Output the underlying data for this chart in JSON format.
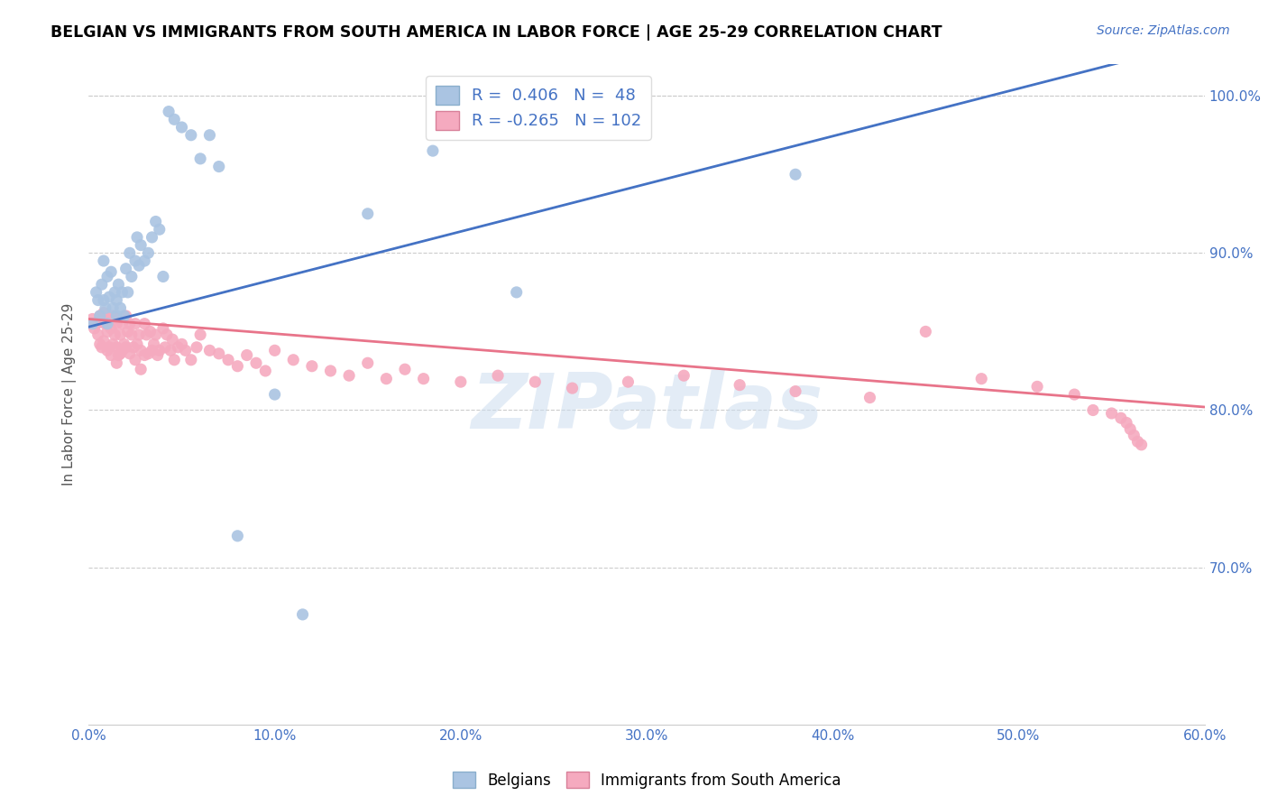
{
  "title": "BELGIAN VS IMMIGRANTS FROM SOUTH AMERICA IN LABOR FORCE | AGE 25-29 CORRELATION CHART",
  "source": "Source: ZipAtlas.com",
  "ylabel": "In Labor Force | Age 25-29",
  "xlim": [
    0.0,
    0.6
  ],
  "ylim": [
    0.6,
    1.02
  ],
  "yticks": [
    0.7,
    0.8,
    0.9,
    1.0
  ],
  "xticks": [
    0.0,
    0.1,
    0.2,
    0.3,
    0.4,
    0.5,
    0.6
  ],
  "xtick_labels": [
    "0.0%",
    "10.0%",
    "20.0%",
    "30.0%",
    "40.0%",
    "50.0%",
    "60.0%"
  ],
  "ytick_labels": [
    "70.0%",
    "80.0%",
    "90.0%",
    "100.0%"
  ],
  "r_belgian": 0.406,
  "n_belgian": 48,
  "r_immigrant": -0.265,
  "n_immigrant": 102,
  "belgian_color": "#aac4e2",
  "immigrant_color": "#f5aabf",
  "belgian_line_color": "#4472c4",
  "immigrant_line_color": "#e8748a",
  "legend_belgian": "Belgians",
  "legend_immigrant": "Immigrants from South America",
  "watermark": "ZIPatlas",
  "belgian_trend": [
    0.853,
    1.035
  ],
  "immigrant_trend": [
    0.858,
    0.802
  ],
  "belgian_x": [
    0.002,
    0.004,
    0.005,
    0.006,
    0.007,
    0.008,
    0.008,
    0.009,
    0.01,
    0.01,
    0.011,
    0.012,
    0.013,
    0.014,
    0.015,
    0.015,
    0.016,
    0.017,
    0.018,
    0.019,
    0.02,
    0.021,
    0.022,
    0.023,
    0.025,
    0.026,
    0.027,
    0.028,
    0.03,
    0.032,
    0.034,
    0.036,
    0.038,
    0.04,
    0.043,
    0.046,
    0.05,
    0.055,
    0.06,
    0.065,
    0.07,
    0.08,
    0.1,
    0.115,
    0.15,
    0.185,
    0.23,
    0.38
  ],
  "belgian_y": [
    0.855,
    0.875,
    0.87,
    0.86,
    0.88,
    0.895,
    0.87,
    0.865,
    0.885,
    0.855,
    0.872,
    0.888,
    0.865,
    0.875,
    0.86,
    0.87,
    0.88,
    0.865,
    0.875,
    0.86,
    0.89,
    0.875,
    0.9,
    0.885,
    0.895,
    0.91,
    0.892,
    0.905,
    0.895,
    0.9,
    0.91,
    0.92,
    0.915,
    0.885,
    0.99,
    0.985,
    0.98,
    0.975,
    0.96,
    0.975,
    0.955,
    0.72,
    0.81,
    0.67,
    0.925,
    0.965,
    0.875,
    0.95
  ],
  "immigrant_x": [
    0.002,
    0.003,
    0.004,
    0.005,
    0.006,
    0.006,
    0.007,
    0.007,
    0.008,
    0.008,
    0.009,
    0.01,
    0.01,
    0.011,
    0.011,
    0.012,
    0.012,
    0.013,
    0.013,
    0.014,
    0.015,
    0.015,
    0.015,
    0.016,
    0.016,
    0.017,
    0.017,
    0.018,
    0.018,
    0.019,
    0.02,
    0.02,
    0.021,
    0.022,
    0.022,
    0.023,
    0.024,
    0.025,
    0.025,
    0.026,
    0.027,
    0.028,
    0.028,
    0.03,
    0.03,
    0.031,
    0.032,
    0.033,
    0.034,
    0.035,
    0.036,
    0.037,
    0.038,
    0.04,
    0.041,
    0.042,
    0.044,
    0.045,
    0.046,
    0.048,
    0.05,
    0.052,
    0.055,
    0.058,
    0.06,
    0.065,
    0.07,
    0.075,
    0.08,
    0.085,
    0.09,
    0.095,
    0.1,
    0.11,
    0.12,
    0.13,
    0.14,
    0.15,
    0.16,
    0.17,
    0.18,
    0.2,
    0.22,
    0.24,
    0.26,
    0.29,
    0.32,
    0.35,
    0.38,
    0.42,
    0.45,
    0.48,
    0.51,
    0.53,
    0.54,
    0.55,
    0.555,
    0.558,
    0.56,
    0.562,
    0.564,
    0.566
  ],
  "immigrant_y": [
    0.858,
    0.852,
    0.855,
    0.848,
    0.86,
    0.842,
    0.856,
    0.84,
    0.862,
    0.844,
    0.855,
    0.85,
    0.838,
    0.858,
    0.84,
    0.852,
    0.835,
    0.86,
    0.842,
    0.848,
    0.855,
    0.84,
    0.83,
    0.858,
    0.835,
    0.848,
    0.836,
    0.855,
    0.838,
    0.842,
    0.86,
    0.84,
    0.85,
    0.855,
    0.836,
    0.848,
    0.84,
    0.855,
    0.832,
    0.842,
    0.848,
    0.838,
    0.826,
    0.855,
    0.835,
    0.848,
    0.836,
    0.85,
    0.838,
    0.842,
    0.848,
    0.835,
    0.838,
    0.852,
    0.84,
    0.848,
    0.838,
    0.845,
    0.832,
    0.84,
    0.842,
    0.838,
    0.832,
    0.84,
    0.848,
    0.838,
    0.836,
    0.832,
    0.828,
    0.835,
    0.83,
    0.825,
    0.838,
    0.832,
    0.828,
    0.825,
    0.822,
    0.83,
    0.82,
    0.826,
    0.82,
    0.818,
    0.822,
    0.818,
    0.814,
    0.818,
    0.822,
    0.816,
    0.812,
    0.808,
    0.85,
    0.82,
    0.815,
    0.81,
    0.8,
    0.798,
    0.795,
    0.792,
    0.788,
    0.784,
    0.78,
    0.778
  ]
}
